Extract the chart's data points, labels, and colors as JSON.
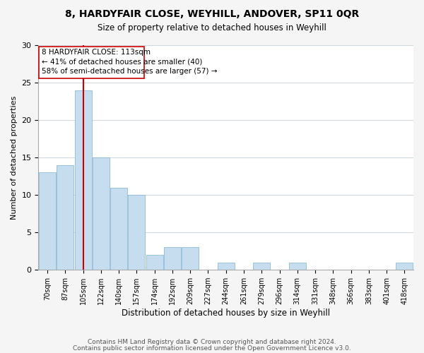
{
  "title1": "8, HARDYFAIR CLOSE, WEYHILL, ANDOVER, SP11 0QR",
  "title2": "Size of property relative to detached houses in Weyhill",
  "xlabel": "Distribution of detached houses by size in Weyhill",
  "ylabel": "Number of detached properties",
  "bar_labels": [
    "70sqm",
    "87sqm",
    "105sqm",
    "122sqm",
    "140sqm",
    "157sqm",
    "174sqm",
    "192sqm",
    "209sqm",
    "227sqm",
    "244sqm",
    "261sqm",
    "279sqm",
    "296sqm",
    "314sqm",
    "331sqm",
    "348sqm",
    "366sqm",
    "383sqm",
    "401sqm",
    "418sqm"
  ],
  "bar_values": [
    13,
    14,
    24,
    15,
    11,
    10,
    2,
    3,
    3,
    0,
    1,
    0,
    1,
    0,
    1,
    0,
    0,
    0,
    0,
    0,
    1
  ],
  "bar_color": "#c5ddef",
  "bar_edge_color": "#ffffff",
  "bar_line_color": "#7fb3d3",
  "grid_color": "#d0d8e0",
  "bg_color": "#ffffff",
  "fig_bg_color": "#f5f5f5",
  "annotation_line1": "8 HARDYFAIR CLOSE: 113sqm",
  "annotation_line2": "← 41% of detached houses are smaller (40)",
  "annotation_line3": "58% of semi-detached houses are larger (57) →",
  "box_color": "#ffffff",
  "box_edge_color": "#cc0000",
  "red_line_color": "#cc0000",
  "ylim": [
    0,
    30
  ],
  "yticks": [
    0,
    5,
    10,
    15,
    20,
    25,
    30
  ],
  "footer1": "Contains HM Land Registry data © Crown copyright and database right 2024.",
  "footer2": "Contains public sector information licensed under the Open Government Licence v3.0."
}
